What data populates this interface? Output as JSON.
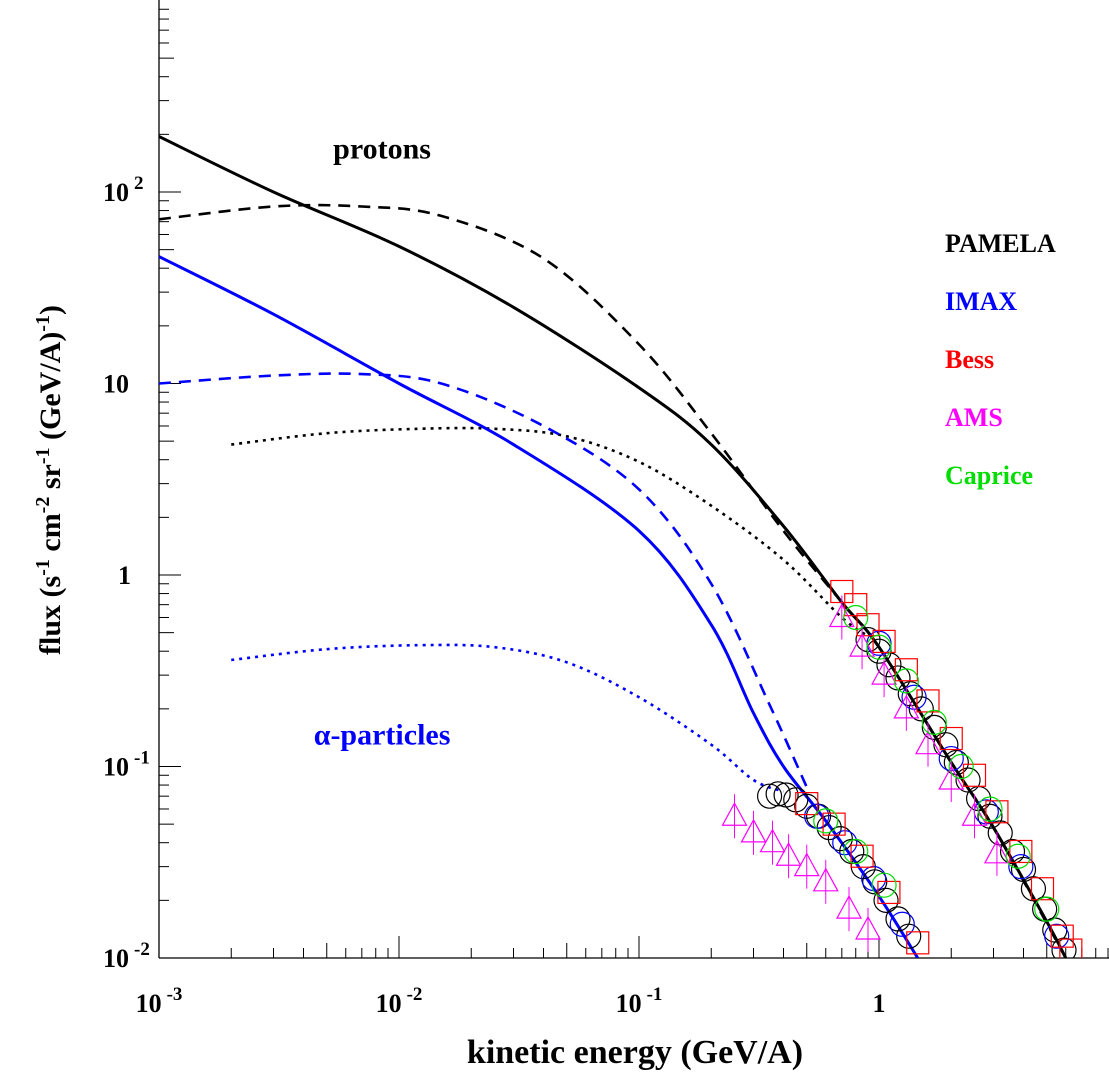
{
  "chart_data": {
    "type": "line",
    "xlabel": "kinetic energy (GeV/A)",
    "ylabel_parts": [
      "flux (s",
      "-1",
      " cm",
      "-2",
      " sr",
      "-1",
      " (GeV/A)",
      "-1",
      ")"
    ],
    "x_scale": "log",
    "y_scale": "log",
    "xlim": [
      0.001,
      9.0
    ],
    "ylim": [
      0.01,
      1000
    ],
    "x_ticks": [
      {
        "value": 0.001,
        "base": "10",
        "exp": "-3"
      },
      {
        "value": 0.01,
        "base": "10",
        "exp": "-2"
      },
      {
        "value": 0.1,
        "base": "10",
        "exp": "-1"
      },
      {
        "value": 1,
        "base": "1",
        "exp": ""
      }
    ],
    "y_ticks": [
      {
        "value": 0.01,
        "base": "10",
        "exp": "-2"
      },
      {
        "value": 0.1,
        "base": "10",
        "exp": "-1"
      },
      {
        "value": 1,
        "base": "1",
        "exp": ""
      },
      {
        "value": 10,
        "base": "10",
        "exp": ""
      },
      {
        "value": 100,
        "base": "10",
        "exp": "2"
      }
    ],
    "annotations": [
      {
        "text": "protons",
        "x": 0.0085,
        "y": 150,
        "color": "#000000"
      },
      {
        "text": "α-particles",
        "x": 0.0085,
        "y": 0.13,
        "color": "#0000ff"
      }
    ],
    "legend": {
      "position": "right",
      "entries": [
        {
          "label": "PAMELA",
          "color": "#000000"
        },
        {
          "label": "IMAX",
          "color": "#0000ff"
        },
        {
          "label": "Bess",
          "color": "#ff0000"
        },
        {
          "label": "AMS",
          "color": "#ff00ff"
        },
        {
          "label": "Caprice",
          "color": "#00dd00"
        }
      ]
    },
    "series": [
      {
        "color": "#000000",
        "style": "solid",
        "points": [
          [
            0.001,
            195
          ],
          [
            0.003,
            100
          ],
          [
            0.01,
            52
          ],
          [
            0.03,
            25
          ],
          [
            0.1,
            9.5
          ],
          [
            0.2,
            4.8
          ],
          [
            0.4,
            1.8
          ],
          [
            0.7,
            0.72
          ],
          [
            1,
            0.42
          ],
          [
            2,
            0.105
          ],
          [
            3,
            0.048
          ],
          [
            5,
            0.0155
          ],
          [
            6,
            0.01
          ]
        ]
      },
      {
        "color": "#000000",
        "style": "dashed",
        "points": [
          [
            0.001,
            72
          ],
          [
            0.003,
            84
          ],
          [
            0.007,
            84
          ],
          [
            0.015,
            75
          ],
          [
            0.04,
            45
          ],
          [
            0.1,
            16
          ],
          [
            0.2,
            5.5
          ],
          [
            0.4,
            1.7
          ],
          [
            0.7,
            0.72
          ],
          [
            1,
            0.42
          ],
          [
            2,
            0.105
          ],
          [
            3,
            0.048
          ],
          [
            6,
            0.01
          ]
        ]
      },
      {
        "color": "#000000",
        "style": "dotted",
        "points": [
          [
            0.002,
            4.8
          ],
          [
            0.005,
            5.5
          ],
          [
            0.012,
            5.8
          ],
          [
            0.025,
            5.8
          ],
          [
            0.05,
            5.3
          ],
          [
            0.1,
            3.9
          ],
          [
            0.2,
            2.3
          ],
          [
            0.4,
            1.2
          ],
          [
            0.7,
            0.6
          ],
          [
            0.9,
            0.48
          ]
        ]
      },
      {
        "color": "#0000ff",
        "style": "solid",
        "points": [
          [
            0.001,
            46
          ],
          [
            0.003,
            23
          ],
          [
            0.01,
            10
          ],
          [
            0.03,
            4.8
          ],
          [
            0.1,
            1.7
          ],
          [
            0.2,
            0.55
          ],
          [
            0.3,
            0.19
          ],
          [
            0.4,
            0.1
          ],
          [
            0.6,
            0.052
          ],
          [
            1,
            0.021
          ],
          [
            1.45,
            0.01
          ]
        ]
      },
      {
        "color": "#0000ff",
        "style": "dashed",
        "points": [
          [
            0.001,
            10
          ],
          [
            0.003,
            11
          ],
          [
            0.007,
            11.2
          ],
          [
            0.015,
            10
          ],
          [
            0.04,
            6
          ],
          [
            0.1,
            2.8
          ],
          [
            0.2,
            0.9
          ],
          [
            0.35,
            0.21
          ],
          [
            0.5,
            0.078
          ]
        ]
      },
      {
        "color": "#0000ff",
        "style": "dotted",
        "points": [
          [
            0.002,
            0.36
          ],
          [
            0.005,
            0.41
          ],
          [
            0.012,
            0.43
          ],
          [
            0.025,
            0.42
          ],
          [
            0.05,
            0.35
          ],
          [
            0.1,
            0.23
          ],
          [
            0.2,
            0.13
          ],
          [
            0.3,
            0.085
          ],
          [
            0.4,
            0.074
          ]
        ]
      }
    ],
    "data_points": [
      {
        "experiment": "PAMELA",
        "marker": "circle",
        "color": "#000000",
        "points": [
          [
            0.35,
            0.07
          ],
          [
            0.38,
            0.072
          ],
          [
            0.41,
            0.071
          ],
          [
            0.45,
            0.067
          ],
          [
            0.5,
            0.062
          ],
          [
            0.56,
            0.055
          ],
          [
            0.62,
            0.048
          ],
          [
            0.69,
            0.042
          ],
          [
            0.77,
            0.036
          ],
          [
            0.86,
            0.03
          ],
          [
            0.96,
            0.025
          ],
          [
            1.07,
            0.02
          ],
          [
            1.2,
            0.016
          ],
          [
            1.33,
            0.013
          ],
          [
            0.9,
            0.46
          ],
          [
            1.0,
            0.4
          ],
          [
            1.1,
            0.34
          ],
          [
            1.2,
            0.29
          ],
          [
            1.35,
            0.24
          ],
          [
            1.5,
            0.2
          ],
          [
            1.7,
            0.16
          ],
          [
            1.9,
            0.13
          ],
          [
            2.1,
            0.105
          ],
          [
            2.35,
            0.085
          ],
          [
            2.6,
            0.068
          ],
          [
            2.9,
            0.055
          ],
          [
            3.2,
            0.045
          ],
          [
            3.6,
            0.036
          ],
          [
            4.0,
            0.029
          ],
          [
            4.4,
            0.023
          ],
          [
            4.9,
            0.018
          ],
          [
            5.4,
            0.014
          ],
          [
            5.9,
            0.011
          ]
        ]
      },
      {
        "experiment": "IMAX",
        "marker": "circle",
        "color": "#0000ff",
        "points": [
          [
            0.55,
            0.055
          ],
          [
            0.72,
            0.04
          ],
          [
            0.95,
            0.026
          ],
          [
            1.25,
            0.015
          ],
          [
            1.0,
            0.44
          ],
          [
            1.4,
            0.23
          ],
          [
            2.0,
            0.11
          ],
          [
            2.8,
            0.058
          ],
          [
            3.9,
            0.03
          ],
          [
            5.5,
            0.013
          ]
        ]
      },
      {
        "experiment": "Bess",
        "marker": "square",
        "color": "#ff0000",
        "points": [
          [
            0.5,
            0.064
          ],
          [
            0.65,
            0.05
          ],
          [
            0.85,
            0.034
          ],
          [
            1.1,
            0.022
          ],
          [
            1.45,
            0.012
          ],
          [
            0.7,
            0.82
          ],
          [
            0.8,
            0.7
          ],
          [
            0.9,
            0.55
          ],
          [
            1.05,
            0.45
          ],
          [
            1.3,
            0.32
          ],
          [
            1.6,
            0.22
          ],
          [
            2.0,
            0.14
          ],
          [
            2.5,
            0.09
          ],
          [
            3.1,
            0.058
          ],
          [
            3.9,
            0.036
          ],
          [
            4.8,
            0.023
          ],
          [
            5.8,
            0.013
          ],
          [
            6.3,
            0.011
          ]
        ]
      },
      {
        "experiment": "AMS",
        "marker": "triangle",
        "color": "#ff00ff",
        "points": [
          [
            0.25,
            0.055
          ],
          [
            0.3,
            0.045
          ],
          [
            0.36,
            0.04
          ],
          [
            0.42,
            0.034
          ],
          [
            0.5,
            0.03
          ],
          [
            0.6,
            0.025
          ],
          [
            0.75,
            0.018
          ],
          [
            0.9,
            0.014
          ],
          [
            0.7,
            0.6
          ],
          [
            0.85,
            0.42
          ],
          [
            1.05,
            0.3
          ],
          [
            1.3,
            0.2
          ],
          [
            1.6,
            0.13
          ],
          [
            2.0,
            0.085
          ],
          [
            2.5,
            0.055
          ],
          [
            3.1,
            0.035
          ]
        ]
      },
      {
        "experiment": "Caprice",
        "marker": "circle",
        "color": "#00dd00",
        "points": [
          [
            0.6,
            0.052
          ],
          [
            0.8,
            0.036
          ],
          [
            1.05,
            0.024
          ],
          [
            0.8,
            0.6
          ],
          [
            1.0,
            0.42
          ],
          [
            1.3,
            0.28
          ],
          [
            1.7,
            0.17
          ],
          [
            2.2,
            0.1
          ],
          [
            2.9,
            0.06
          ],
          [
            3.8,
            0.034
          ],
          [
            5.0,
            0.018
          ]
        ]
      }
    ]
  }
}
